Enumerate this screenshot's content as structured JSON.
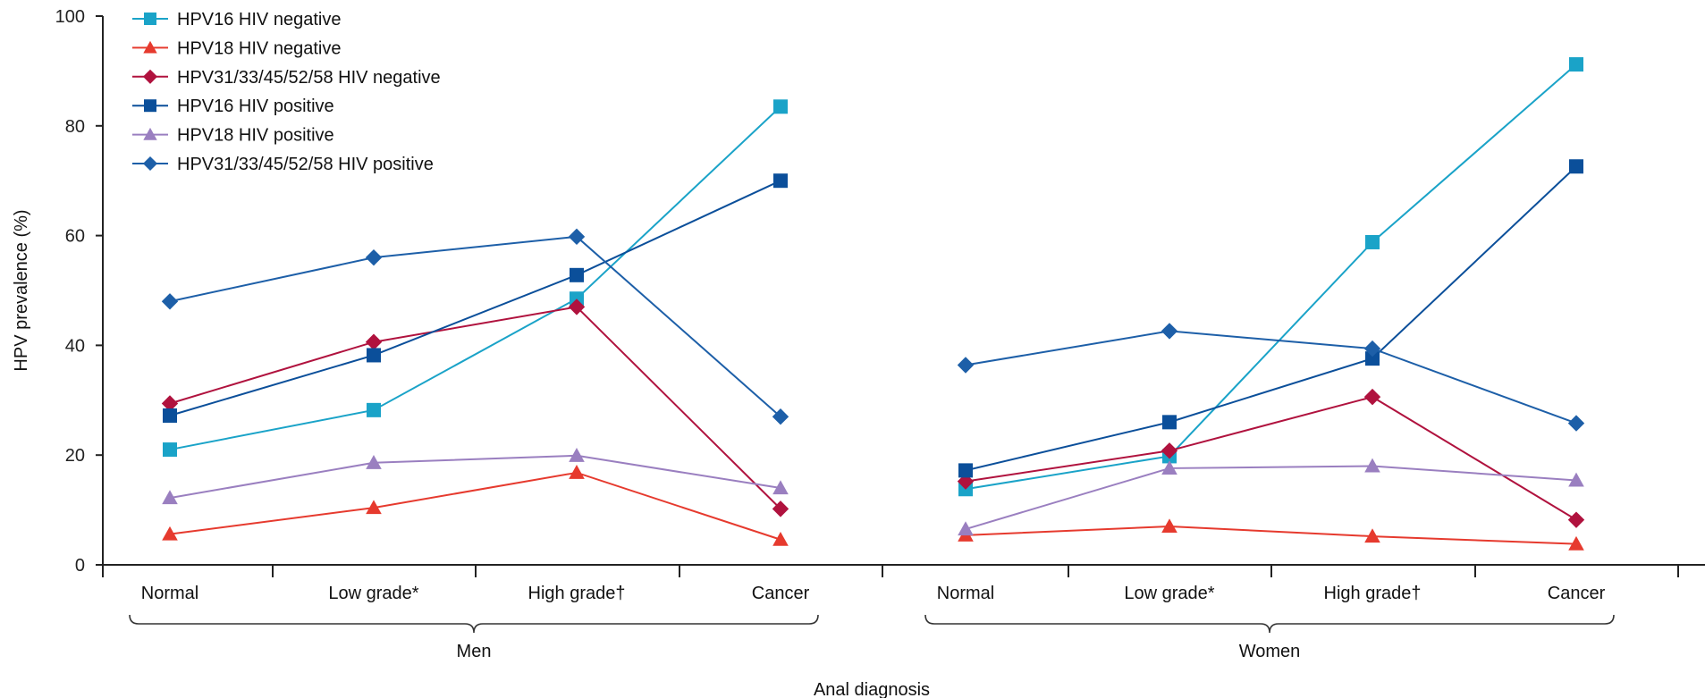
{
  "chart_data": {
    "type": "line",
    "ylabel": "HPV prevalence (%)",
    "xlabel": "Anal diagnosis",
    "ylim": [
      0,
      100
    ],
    "yticks": [
      0,
      20,
      40,
      60,
      80,
      100
    ],
    "groups": [
      {
        "name": "Men",
        "categories": [
          "Normal",
          "Low grade*",
          "High grade†",
          "Cancer"
        ]
      },
      {
        "name": "Women",
        "categories": [
          "Normal",
          "Low grade*",
          "High grade†",
          "Cancer"
        ]
      }
    ],
    "legend_position": "top-left",
    "grid": false,
    "series": [
      {
        "name": "HPV16 HIV negative",
        "marker": "square",
        "color": "#1aa3c8",
        "values": [
          [
            21.0,
            28.2,
            48.5,
            83.5
          ],
          [
            13.8,
            19.8,
            58.8,
            91.2
          ]
        ]
      },
      {
        "name": "HPV18 HIV negative",
        "marker": "triangle",
        "color": "#e63a2e",
        "values": [
          [
            5.6,
            10.4,
            16.8,
            4.6
          ],
          [
            5.4,
            7.0,
            5.2,
            3.8
          ]
        ]
      },
      {
        "name": "HPV31/33/45/52/58 HIV negative",
        "marker": "diamond",
        "color": "#b0123e",
        "values": [
          [
            29.4,
            40.6,
            47.0,
            10.2
          ],
          [
            15.2,
            20.8,
            30.6,
            8.2
          ]
        ]
      },
      {
        "name": "HPV16 HIV positive",
        "marker": "square",
        "color": "#0b4f9a",
        "values": [
          [
            27.2,
            38.2,
            52.8,
            70.0
          ],
          [
            17.2,
            26.0,
            37.6,
            72.6
          ]
        ]
      },
      {
        "name": "HPV18 HIV positive",
        "marker": "triangle",
        "color": "#9a7fc0",
        "values": [
          [
            12.2,
            18.6,
            19.9,
            14.0
          ],
          [
            6.5,
            17.6,
            18.0,
            15.4
          ]
        ]
      },
      {
        "name": "HPV31/33/45/52/58 HIV positive",
        "marker": "diamond",
        "color": "#1d5fa8",
        "values": [
          [
            48.0,
            56.0,
            59.8,
            27.0
          ],
          [
            36.4,
            42.6,
            39.4,
            25.8
          ]
        ]
      }
    ]
  }
}
